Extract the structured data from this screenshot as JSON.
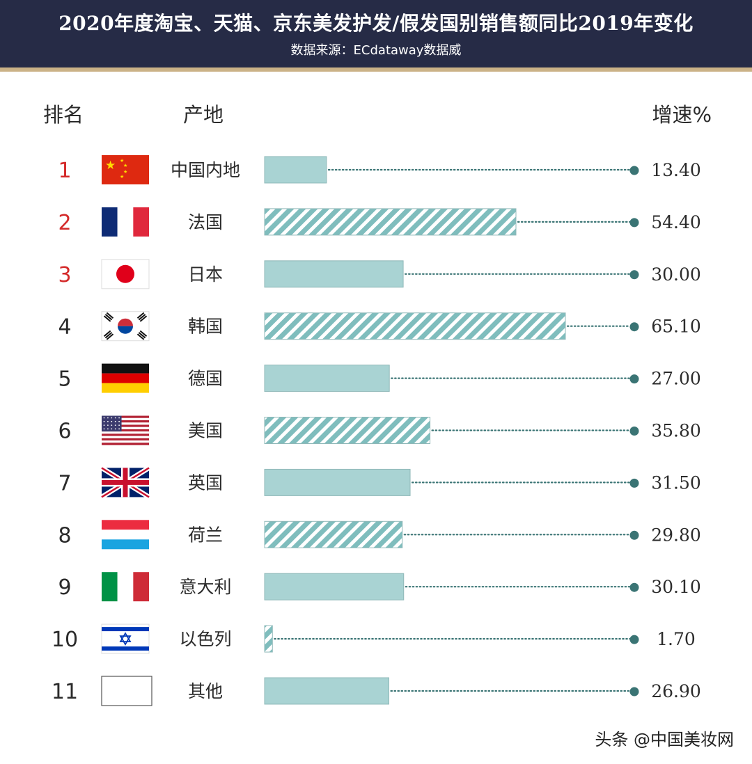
{
  "title": "2020年度淘宝、天猫、京东美发护发/假发国别销售额同比2019年变化",
  "source": "数据来源：ECdataway数据威",
  "headers": {
    "rank": "排名",
    "origin": "产地",
    "growth": "增速%"
  },
  "watermark": "头条 @中国美妆网",
  "colors": {
    "header_bg": "#262b46",
    "header_rule": "#cbb287",
    "bar_fill": "#a9d3d3",
    "bar_stroke": "#8fb8b8",
    "hatch_stripe": "#7fbdbd",
    "dot": "#3a7474",
    "top_rank": "#d42a2a",
    "rank": "#2b2b2b"
  },
  "chart_data": {
    "type": "bar",
    "orientation": "horizontal",
    "categories": [
      "中国内地",
      "法国",
      "日本",
      "韩国",
      "德国",
      "美国",
      "英国",
      "荷兰",
      "意大利",
      "以色列",
      "其他"
    ],
    "ranks": [
      "1",
      "2",
      "3",
      "4",
      "5",
      "6",
      "7",
      "8",
      "9",
      "10",
      "11"
    ],
    "values": [
      13.4,
      54.4,
      30.0,
      65.1,
      27.0,
      35.8,
      31.5,
      29.8,
      30.1,
      1.7,
      26.9
    ],
    "value_labels": [
      "13.40",
      "54.40",
      "30.00",
      "65.10",
      "27.00",
      "35.80",
      "31.50",
      "29.80",
      "30.10",
      "1.70",
      "26.90"
    ],
    "hatched": [
      false,
      true,
      false,
      true,
      false,
      true,
      false,
      true,
      false,
      true,
      false
    ],
    "flags": [
      "china-flag",
      "france-flag",
      "japan-flag",
      "korea-flag",
      "germany-flag",
      "usa-flag",
      "uk-flag",
      "netherlands-flag",
      "italy-flag",
      "israel-flag",
      "blank-flag"
    ],
    "xlim": [
      0,
      65.1
    ],
    "grid": false,
    "legend": "none"
  }
}
